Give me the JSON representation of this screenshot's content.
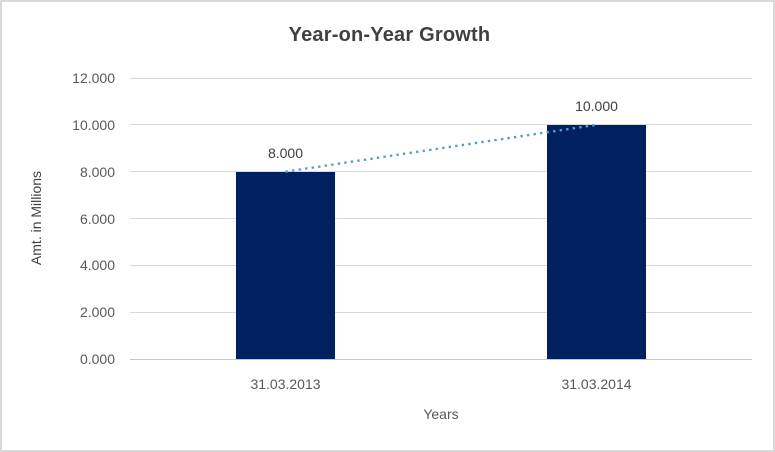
{
  "chart_data": {
    "type": "bar",
    "title": "Year-on-Year Growth",
    "xlabel": "Years",
    "ylabel": "Amt. in Millions",
    "categories": [
      "31.03.2013",
      "31.03.2014"
    ],
    "series": [
      {
        "name": "Amt. in Millions",
        "values": [
          8000,
          10000
        ]
      }
    ],
    "data_labels": [
      "8.000",
      "10.000"
    ],
    "y_ticks": [
      {
        "value": 0,
        "label": "0.000"
      },
      {
        "value": 2000,
        "label": "2.000"
      },
      {
        "value": 4000,
        "label": "4.000"
      },
      {
        "value": 6000,
        "label": "6.000"
      },
      {
        "value": 8000,
        "label": "8.000"
      },
      {
        "value": 10000,
        "label": "10.000"
      },
      {
        "value": 12000,
        "label": "12.000"
      }
    ],
    "ylim": [
      0,
      12000
    ],
    "grid": true,
    "legend": false,
    "trendline": {
      "type": "linear",
      "style": "dotted",
      "points": [
        8000,
        10000
      ]
    },
    "colors": {
      "bar": "#002060",
      "trendline": "#5b9bd5",
      "gridline": "#d9d9d9",
      "axis_line": "#c6c6c6",
      "title_text": "#404040",
      "tick_text": "#595959",
      "label_text": "#404040",
      "background": "#ffffff",
      "border": "#d9d9d9"
    }
  }
}
